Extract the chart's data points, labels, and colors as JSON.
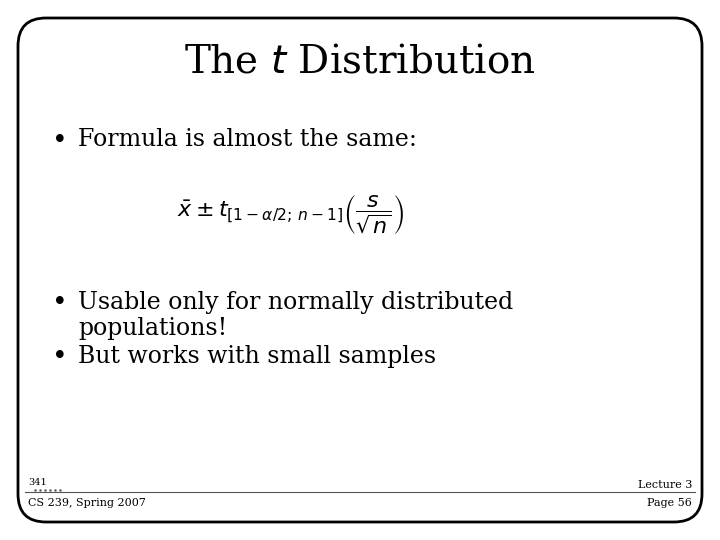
{
  "title_fontsize": 28,
  "bullet_fontsize": 17,
  "formula_fontsize": 16,
  "footer_fontsize": 8,
  "page_num_fontsize": 7,
  "background_color": "#ffffff",
  "border_color": "#000000",
  "text_color": "#000000",
  "bullet1": "Formula is almost the same:",
  "bullet2a": "Usable only for normally distributed",
  "bullet2b": "populations!",
  "bullet3": "But works with small samples",
  "footer_left_top": "341",
  "footer_left_bottom": "CS 239, Spring 2007",
  "footer_right_line1": "Lecture 3",
  "footer_right_line2": "Page 56",
  "formula": "$\\bar{x} \\pm t_{[1-\\alpha/2;\\, n-1]}\\left(\\dfrac{s}{\\sqrt{n}}\\right)$"
}
